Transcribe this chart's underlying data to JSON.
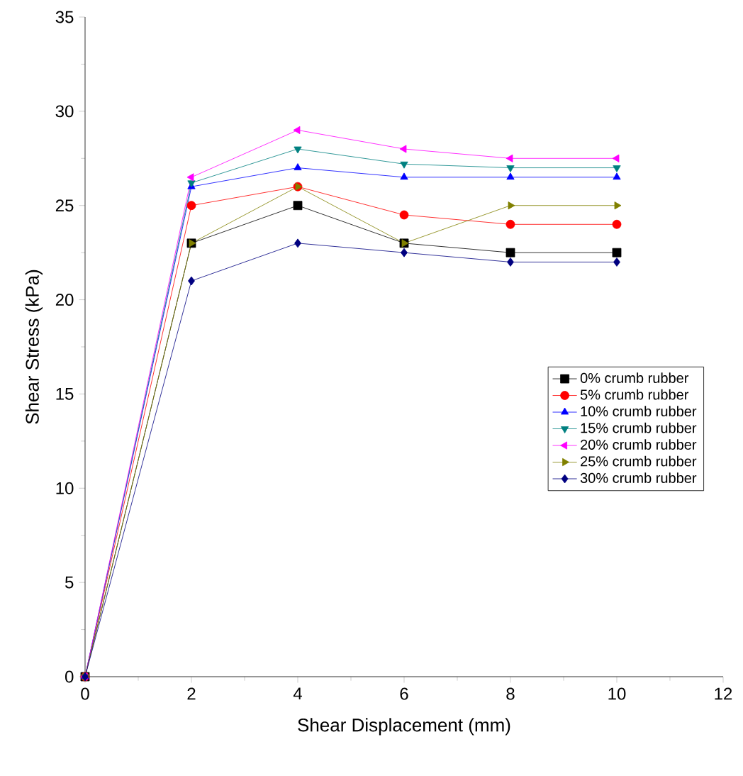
{
  "chart_data": {
    "type": "line",
    "xlabel": "Shear Displacement (mm)",
    "ylabel": "Shear Stress (kPa)",
    "x": [
      0,
      2,
      4,
      6,
      8,
      10
    ],
    "series": [
      {
        "name": "0% crumb rubber",
        "color": "#000000",
        "marker": "square",
        "values": [
          0,
          23,
          25,
          23,
          22.5,
          22.5
        ]
      },
      {
        "name": "5%  crumb rubber",
        "color": "#ff0000",
        "marker": "circle",
        "values": [
          0,
          25,
          26,
          24.5,
          24,
          24
        ]
      },
      {
        "name": "10%  crumb rubber",
        "color": "#0000ff",
        "marker": "triangle",
        "values": [
          0,
          26,
          27,
          26.5,
          26.5,
          26.5
        ]
      },
      {
        "name": "15%  crumb rubber",
        "color": "#008080",
        "marker": "triangle down",
        "values": [
          0,
          26.2,
          28,
          27.2,
          27,
          27
        ]
      },
      {
        "name": "20%  crumb rubber",
        "color": "#ff00ff",
        "marker": "triangle left",
        "values": [
          0,
          26.5,
          29,
          28,
          27.5,
          27.5
        ]
      },
      {
        "name": "25%  crumb rubber",
        "color": "#808000",
        "marker": "triangle right",
        "values": [
          0,
          23,
          26,
          23,
          25,
          25
        ]
      },
      {
        "name": "30%  crumb rubber",
        "color": "#000080",
        "marker": "diamond",
        "values": [
          0,
          21,
          23,
          22.5,
          22,
          22
        ]
      }
    ],
    "xlim": [
      0,
      12
    ],
    "xticks": [
      0,
      2,
      4,
      6,
      8,
      10,
      12
    ],
    "ylim": [
      0,
      35
    ],
    "yticks": [
      0,
      5,
      10,
      15,
      20,
      25,
      30,
      35
    ],
    "legend": "right",
    "grid": false,
    "line_style": "solid"
  }
}
